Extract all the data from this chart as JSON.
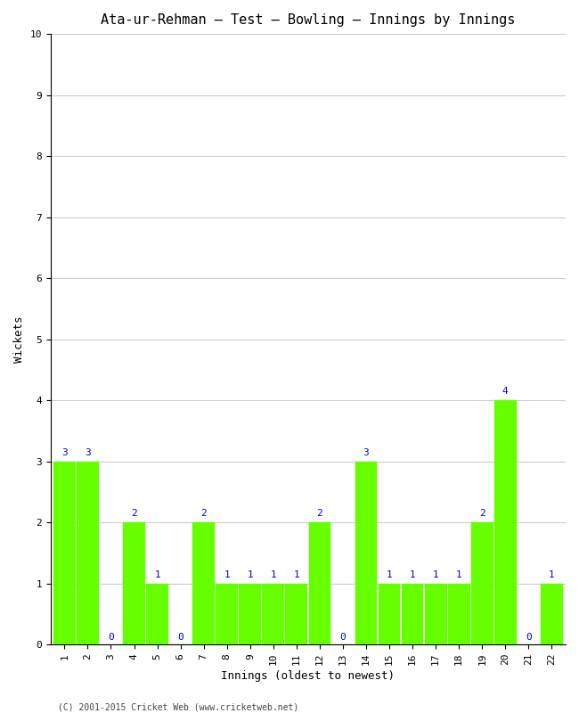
{
  "title": "Ata-ur-Rehman – Test – Bowling – Innings by Innings",
  "xlabel": "Innings (oldest to newest)",
  "ylabel": "Wickets",
  "innings": [
    1,
    2,
    3,
    4,
    5,
    6,
    7,
    8,
    9,
    10,
    11,
    12,
    13,
    14,
    15,
    16,
    17,
    18,
    19,
    20,
    21,
    22
  ],
  "wickets": [
    3,
    3,
    0,
    2,
    1,
    0,
    2,
    1,
    1,
    1,
    1,
    2,
    0,
    3,
    1,
    1,
    1,
    1,
    2,
    4,
    0,
    1
  ],
  "bar_color": "#66ff00",
  "bar_edge_color": "#66ff00",
  "label_color": "#0000cc",
  "background_color": "#ffffff",
  "grid_color": "#cccccc",
  "ylim": [
    0,
    10
  ],
  "yticks": [
    0,
    1,
    2,
    3,
    4,
    5,
    6,
    7,
    8,
    9,
    10
  ],
  "title_fontsize": 11,
  "axis_label_fontsize": 9,
  "tick_fontsize": 8,
  "label_fontsize": 8,
  "footer": "(C) 2001-2015 Cricket Web (www.cricketweb.net)",
  "footer_fontsize": 7
}
